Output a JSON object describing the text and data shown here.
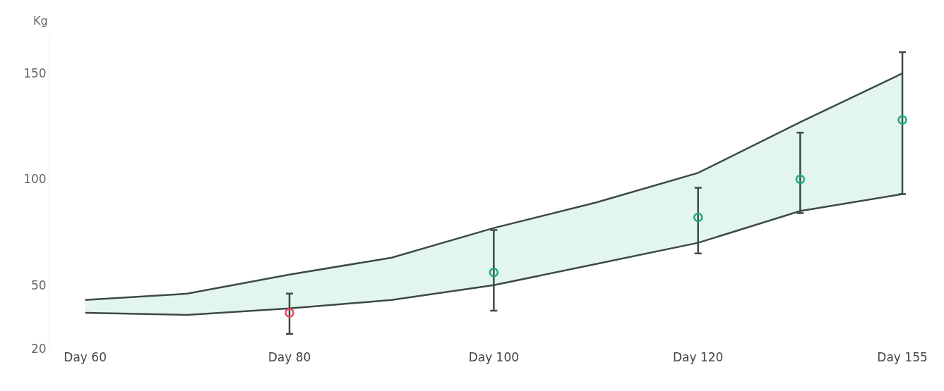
{
  "chart_data": {
    "type": "line",
    "ylabel": "Kg",
    "categories": [
      "Day 60",
      null,
      "Day 80",
      null,
      "Day 100",
      null,
      "Day 120",
      null,
      "Day 155"
    ],
    "ylim": [
      20,
      168
    ],
    "yticks": [
      20,
      50,
      100,
      150
    ],
    "series": [
      {
        "color": "#3b4a45",
        "values": [
          43,
          46,
          55,
          63,
          77,
          89,
          103,
          127,
          150
        ],
        "upper": [
          43,
          46,
          55,
          63,
          77,
          89,
          103,
          127,
          150
        ],
        "lower": [
          37,
          36,
          39,
          43,
          50,
          60,
          70,
          85,
          93
        ]
      },
      {
        "color": "#3b4a45",
        "values": [
          37,
          36,
          39,
          43,
          50,
          60,
          70,
          85,
          93
        ]
      },
      {
        "type": "scatter",
        "values": [
          null,
          null,
          37,
          null,
          56,
          null,
          82,
          100,
          128
        ],
        "errors": [
          null,
          null,
          [
            27,
            46
          ],
          null,
          [
            38,
            76
          ],
          null,
          [
            65,
            96
          ],
          [
            84,
            122
          ],
          [
            93,
            160
          ]
        ],
        "colors": [
          "#1aab7a",
          "#1aab7a",
          "#e84a5f",
          "#1aab7a",
          "#1aab7a",
          "#1aab7a",
          "#1aab7a",
          "#1aab7a",
          "#1aab7a"
        ],
        "marker": "circle"
      }
    ],
    "grid": false
  }
}
